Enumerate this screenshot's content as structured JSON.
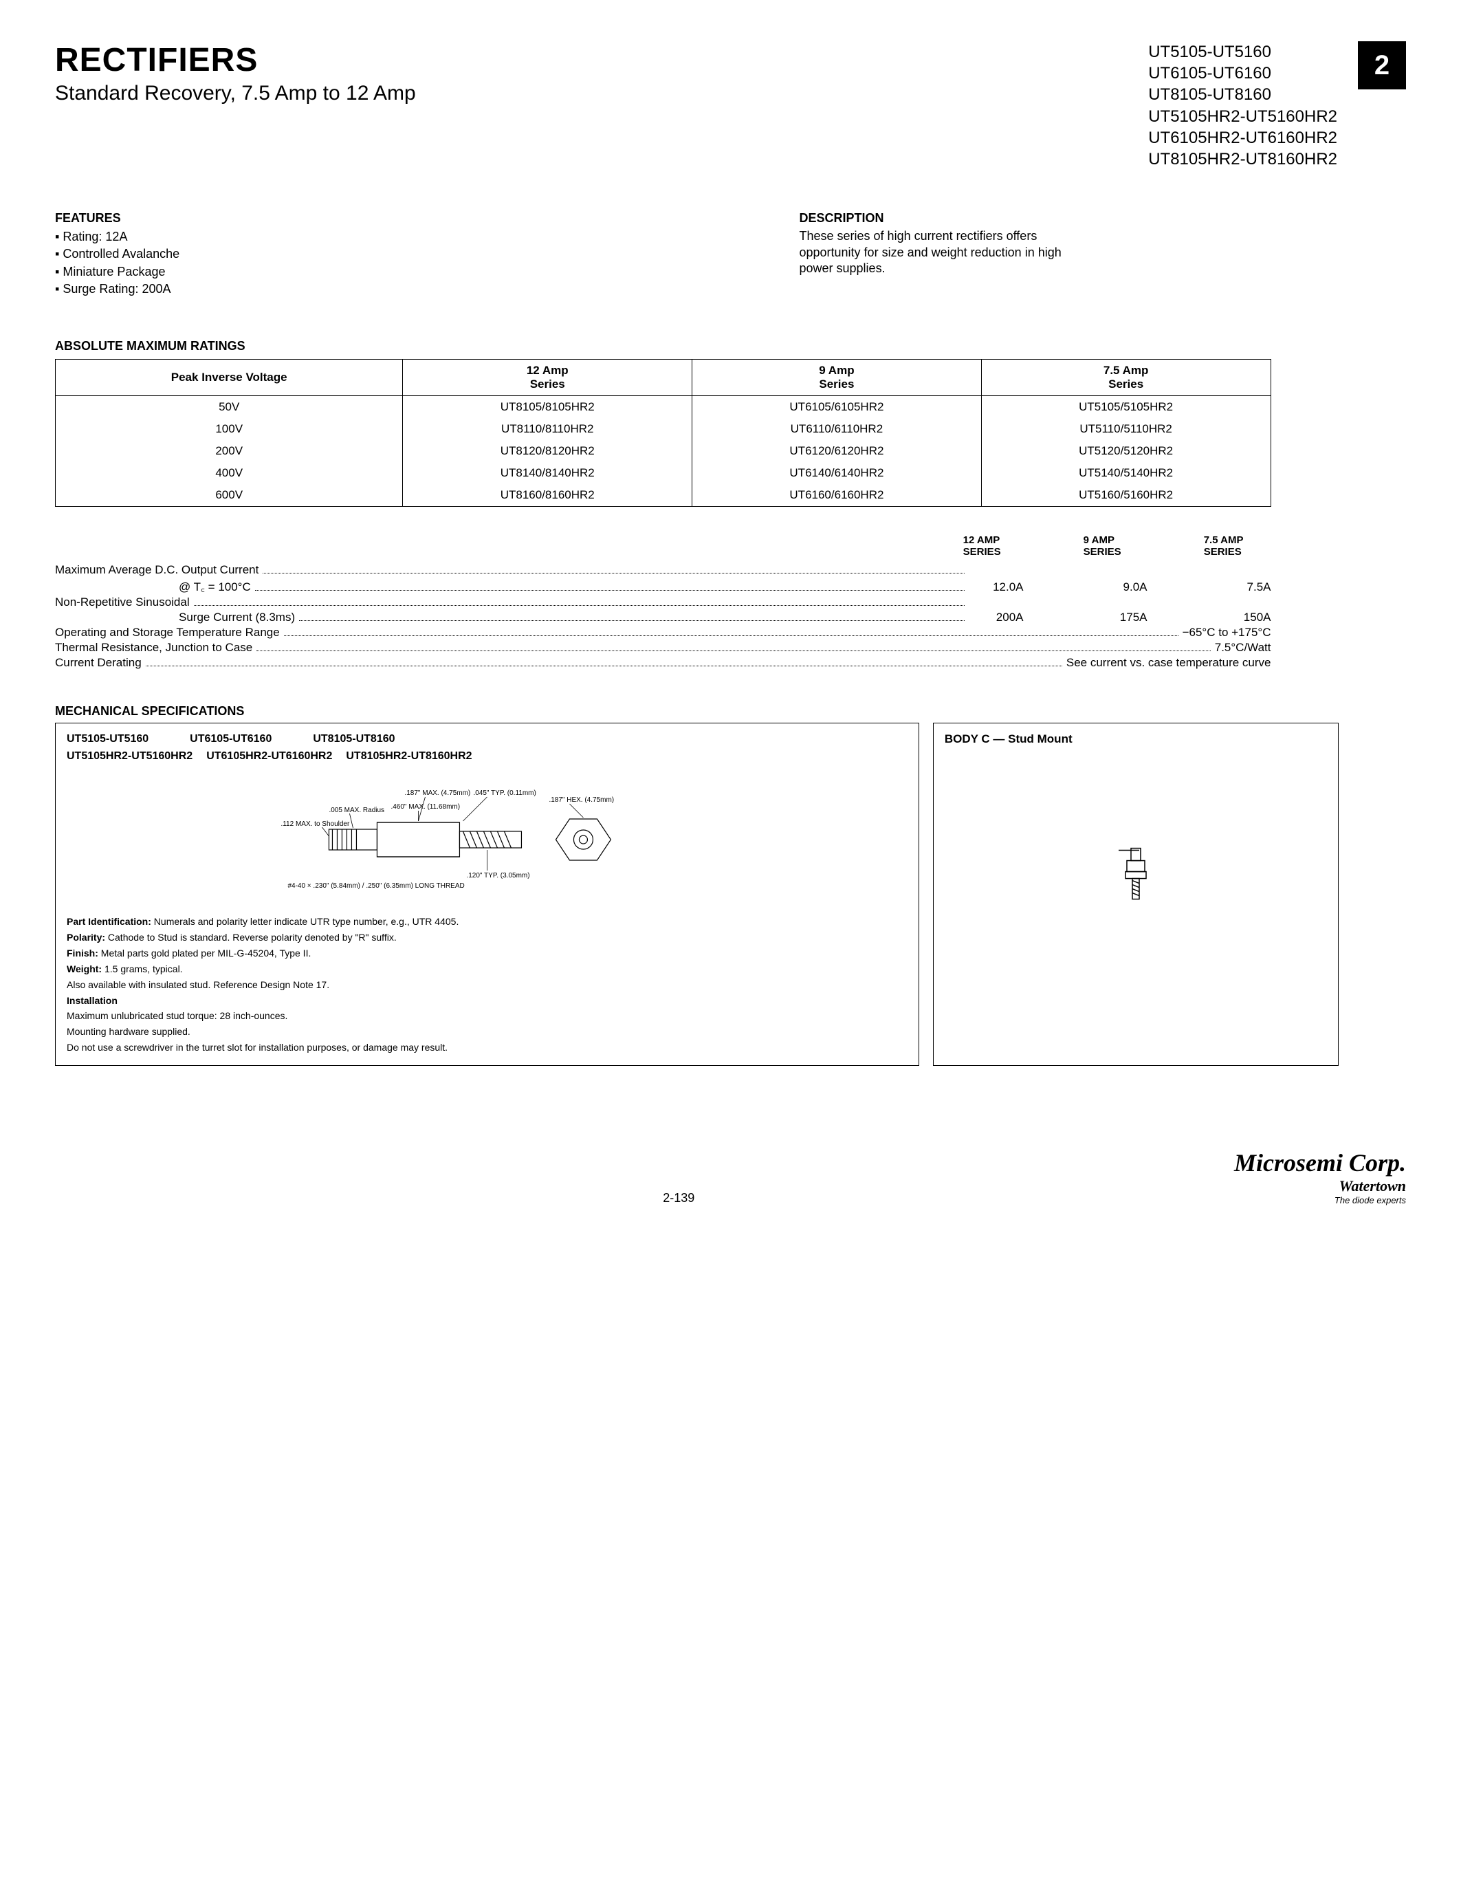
{
  "header": {
    "title": "RECTIFIERS",
    "subtitle": "Standard Recovery, 7.5 Amp to 12 Amp",
    "part_lines": [
      "UT5105-UT5160",
      "UT6105-UT6160",
      "UT8105-UT8160",
      "UT5105HR2-UT5160HR2",
      "UT6105HR2-UT6160HR2",
      "UT8105HR2-UT8160HR2"
    ],
    "page_badge": "2"
  },
  "features": {
    "title": "FEATURES",
    "items": [
      "Rating: 12A",
      "Controlled Avalanche",
      "Miniature Package",
      "Surge Rating: 200A"
    ]
  },
  "description": {
    "title": "DESCRIPTION",
    "text": "These series of high current rectifiers offers opportunity for size and weight reduction in high power supplies."
  },
  "ratings": {
    "title": "ABSOLUTE MAXIMUM RATINGS",
    "columns": [
      "Peak Inverse Voltage",
      "12 Amp\nSeries",
      "9 Amp\nSeries",
      "7.5 Amp\nSeries"
    ],
    "rows": [
      [
        "50V",
        "UT8105/8105HR2",
        "UT6105/6105HR2",
        "UT5105/5105HR2"
      ],
      [
        "100V",
        "UT8110/8110HR2",
        "UT6110/6110HR2",
        "UT5110/5110HR2"
      ],
      [
        "200V",
        "UT8120/8120HR2",
        "UT6120/6120HR2",
        "UT5120/5120HR2"
      ],
      [
        "400V",
        "UT8140/8140HR2",
        "UT6140/6140HR2",
        "UT5140/5140HR2"
      ],
      [
        "600V",
        "UT8160/8160HR2",
        "UT6160/6160HR2",
        "UT5160/5160HR2"
      ]
    ]
  },
  "specs": {
    "col_headers": [
      "12 AMP\nSERIES",
      "9 AMP\nSERIES",
      "7.5 AMP\nSERIES"
    ],
    "lines": [
      {
        "label": "Maximum Average D.C. Output Current",
        "vals": [
          "",
          "",
          ""
        ]
      },
      {
        "label": "@ T꜀ = 100°C",
        "indent": true,
        "vals": [
          "12.0A",
          "9.0A",
          "7.5A"
        ]
      },
      {
        "label": "Non-Repetitive Sinusoidal",
        "vals": [
          "",
          "",
          ""
        ]
      },
      {
        "label": "Surge Current (8.3ms)",
        "indent": true,
        "vals": [
          "200A",
          "175A",
          "150A"
        ]
      },
      {
        "label": "Operating and Storage Temperature Range",
        "vals": [
          "",
          "−65°C to +175°C",
          ""
        ]
      },
      {
        "label": "Thermal Resistance, Junction to Case",
        "vals": [
          "",
          "7.5°C/Watt",
          ""
        ]
      },
      {
        "label": "Current Derating",
        "vals": [
          "",
          "See current vs. case temperature curve",
          ""
        ]
      }
    ]
  },
  "mechanical": {
    "title": "MECHANICAL SPECIFICATIONS",
    "left": {
      "headers_top": [
        "UT5105-UT5160",
        "UT6105-UT6160",
        "UT8105-UT8160"
      ],
      "headers_bot": [
        "UT5105HR2-UT5160HR2",
        "UT6105HR2-UT6160HR2",
        "UT8105HR2-UT8160HR2"
      ],
      "dims": {
        "d1": ".187\" MAX. (4.75mm)",
        "d2": ".045\" TYP. (0.11mm)",
        "d3": ".187\" HEX. (4.75mm)",
        "d4": ".460\" MAX. (11.68mm)",
        "d5": ".112 MAX. to Shoulder",
        "d6": ".005 MAX. Radius",
        "d7": ".120\" TYP. (3.05mm)",
        "d8": "#4-40 × .230\" (5.84mm) / .250\" (6.35mm) LONG THREAD"
      },
      "notes": [
        {
          "b": "Part Identification:",
          "t": " Numerals and polarity letter indicate UTR type number, e.g., UTR 4405."
        },
        {
          "b": "Polarity:",
          "t": " Cathode to Stud is standard. Reverse polarity denoted by \"R\" suffix."
        },
        {
          "b": "Finish:",
          "t": " Metal parts gold plated per MIL-G-45204, Type II."
        },
        {
          "b": "Weight:",
          "t": " 1.5 grams, typical."
        },
        {
          "b": "",
          "t": "Also available with insulated stud. Reference Design Note 17."
        },
        {
          "b": "Installation",
          "t": ""
        },
        {
          "b": "",
          "t": "Maximum unlubricated stud torque: 28 inch-ounces."
        },
        {
          "b": "",
          "t": "Mounting hardware supplied."
        },
        {
          "b": "",
          "t": "Do not use a screwdriver in the turret slot for installation purposes, or damage may result."
        }
      ]
    },
    "right": {
      "title": "BODY C — Stud Mount"
    }
  },
  "footer": {
    "page": "2-139",
    "company": "Microsemi Corp.",
    "location": "Watertown",
    "tagline": "The diode experts"
  }
}
